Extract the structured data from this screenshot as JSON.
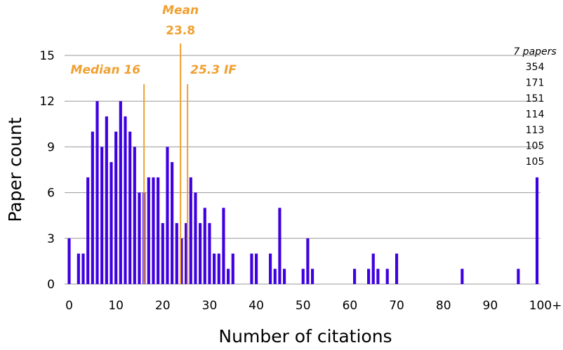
{
  "chart_data": {
    "type": "bar",
    "xlabel": "Number of citations",
    "ylabel": "Paper count",
    "xlim": [
      0,
      100
    ],
    "ylim": [
      0,
      15
    ],
    "x_ticks": [
      "0",
      "10",
      "20",
      "30",
      "40",
      "50",
      "60",
      "70",
      "80",
      "90",
      "100+"
    ],
    "y_ticks": [
      "0",
      "3",
      "6",
      "9",
      "12",
      "15"
    ],
    "grid": "horizontal",
    "bar_color": "#3f00e0",
    "annotation_color": "#f0a030",
    "x": [
      0,
      2,
      3,
      4,
      5,
      6,
      7,
      8,
      9,
      10,
      11,
      12,
      13,
      14,
      15,
      16,
      17,
      18,
      19,
      20,
      21,
      22,
      23,
      24,
      25,
      26,
      27,
      28,
      29,
      30,
      31,
      32,
      33,
      34,
      35,
      39,
      40,
      43,
      44,
      45,
      46,
      50,
      51,
      52,
      61,
      64,
      65,
      66,
      68,
      70,
      84,
      96,
      100
    ],
    "values": [
      3,
      2,
      2,
      7,
      10,
      12,
      9,
      11,
      8,
      10,
      12,
      11,
      10,
      9,
      6,
      6,
      7,
      7,
      7,
      4,
      9,
      8,
      4,
      3,
      4,
      7,
      6,
      4,
      5,
      4,
      2,
      2,
      5,
      1,
      2,
      2,
      2,
      2,
      1,
      5,
      1,
      1,
      3,
      1,
      1,
      1,
      2,
      1,
      1,
      2,
      1,
      1,
      7
    ],
    "annotations": [
      {
        "label": "Median 16",
        "x": 16
      },
      {
        "label": "Mean",
        "value": "23.8",
        "x": 23.8
      },
      {
        "label": "25.3  IF",
        "x": 25.3
      }
    ],
    "overflow_header": "7 papers",
    "overflow_values": [
      "354",
      "171",
      "151",
      "114",
      "113",
      "105",
      "105"
    ]
  }
}
